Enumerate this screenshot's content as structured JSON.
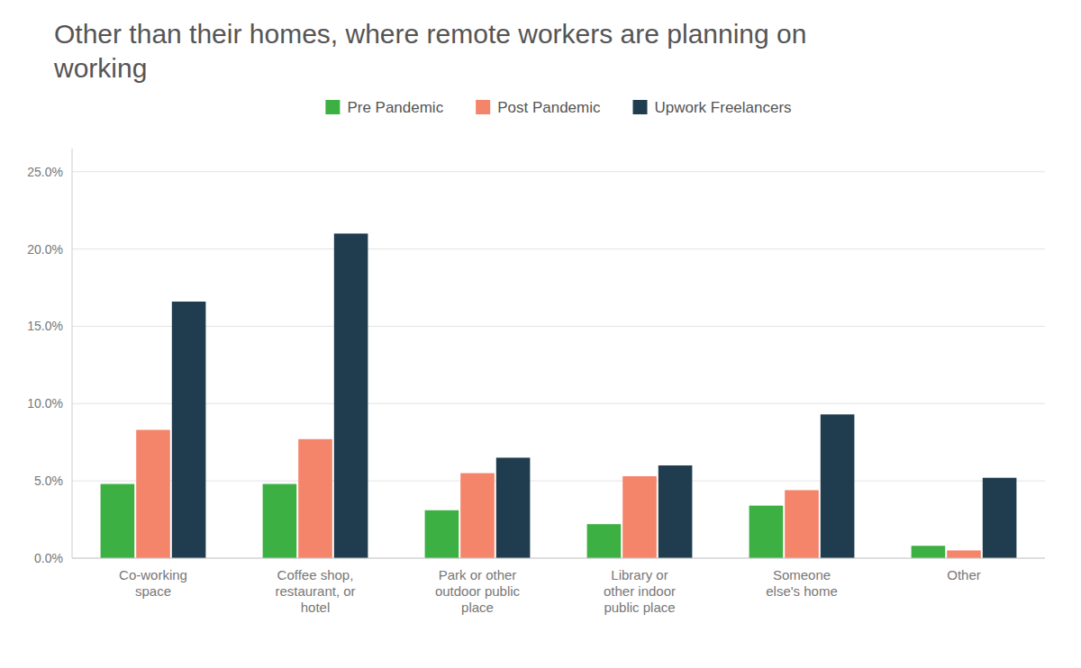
{
  "chart_data": {
    "type": "bar",
    "title": "Other than their homes, where remote workers are planning on\nworking",
    "categories": [
      "Co-working\nspace",
      "Coffee shop,\nrestaurant, or\nhotel",
      "Park or other\noutdoor public\nplace",
      "Library or\nother indoor\npublic place",
      "Someone\nelse's home",
      "Other"
    ],
    "series": [
      {
        "name": "Pre Pandemic",
        "color": "#3cb043",
        "values": [
          0.048,
          0.048,
          0.031,
          0.022,
          0.034,
          0.008
        ]
      },
      {
        "name": "Post Pandemic",
        "color": "#F4846A",
        "values": [
          0.083,
          0.077,
          0.055,
          0.053,
          0.044,
          0.005
        ]
      },
      {
        "name": "Upwork Freelancers",
        "color": "#1F3D4E",
        "values": [
          0.166,
          0.21,
          0.065,
          0.06,
          0.093,
          0.052
        ]
      }
    ],
    "ylim": [
      0,
      0.265
    ],
    "yticks": [
      {
        "value": 0.0,
        "label": "0.0%"
      },
      {
        "value": 0.05,
        "label": "5.0%"
      },
      {
        "value": 0.1,
        "label": "10.0%"
      },
      {
        "value": 0.15,
        "label": "15.0%"
      },
      {
        "value": 0.2,
        "label": "20.0%"
      },
      {
        "value": 0.25,
        "label": "25.0%"
      }
    ],
    "grid": true,
    "legend": "top"
  }
}
